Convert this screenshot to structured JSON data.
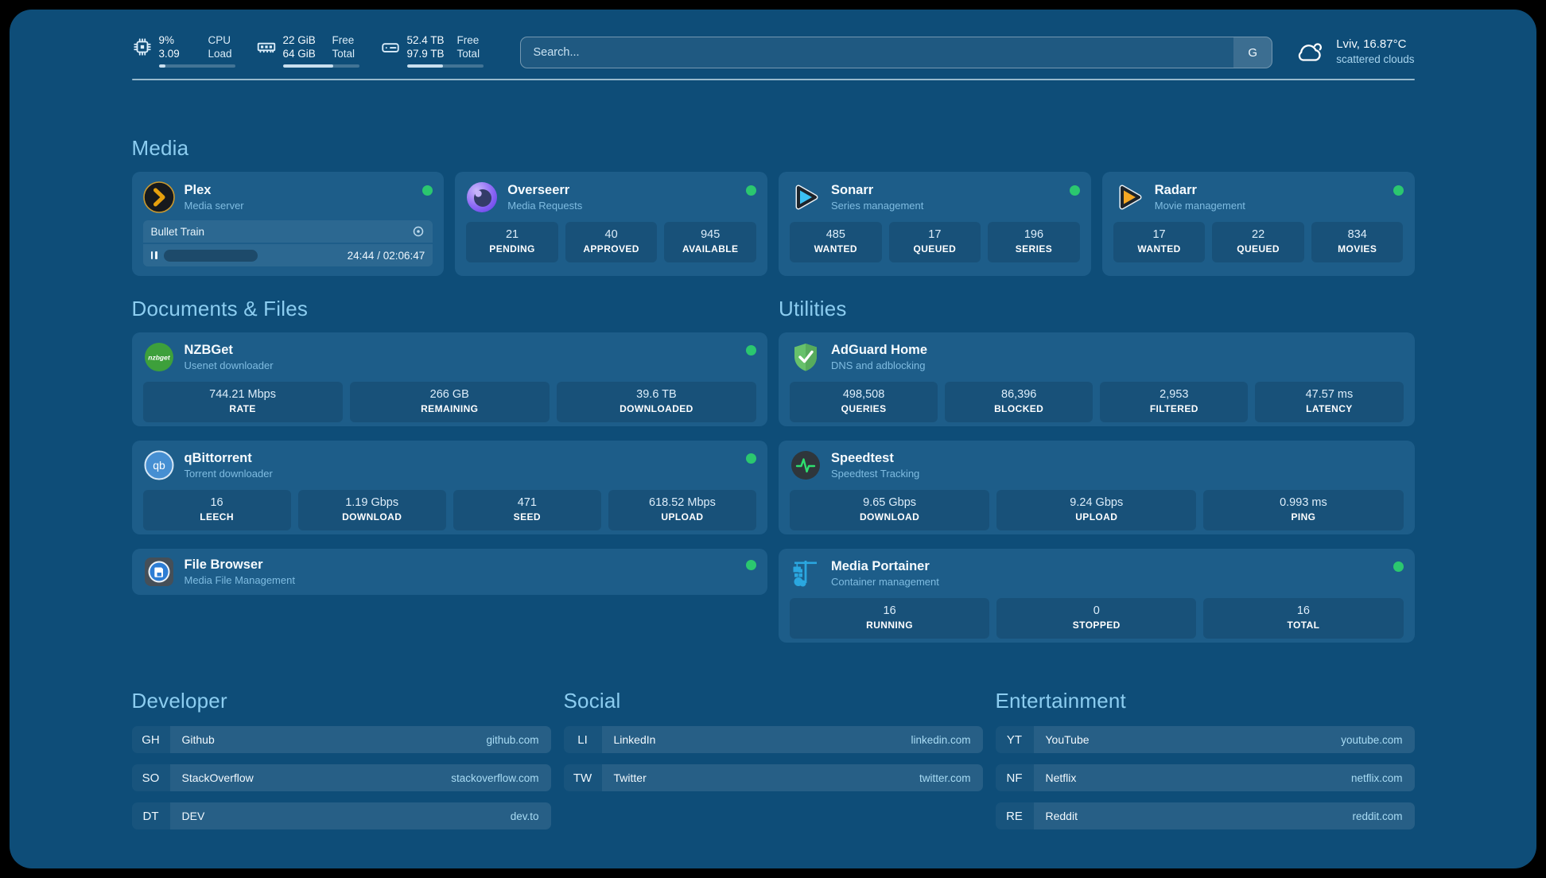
{
  "header": {
    "resources": [
      {
        "icon": "cpu",
        "values": [
          "9%",
          "3.09"
        ],
        "labels": [
          "CPU",
          "Load"
        ],
        "progress_percent": 9
      },
      {
        "icon": "memory",
        "values": [
          "22 GiB",
          "64 GiB"
        ],
        "labels": [
          "Free",
          "Total"
        ],
        "progress_percent": 66
      },
      {
        "icon": "disk",
        "values": [
          "52.4 TB",
          "97.9 TB"
        ],
        "labels": [
          "Free",
          "Total"
        ],
        "progress_percent": 47
      }
    ],
    "search": {
      "placeholder": "Search...",
      "button_label": "G"
    },
    "weather": {
      "location": "Lviv, 16.87°C",
      "condition": "scattered clouds"
    }
  },
  "media": {
    "title": "Media",
    "plex": {
      "name": "Plex",
      "description": "Media server",
      "online": true,
      "now_playing": {
        "title": "Bullet Train",
        "time": "24:44 / 02:06:47"
      }
    },
    "overseerr": {
      "name": "Overseerr",
      "description": "Media Requests",
      "online": true,
      "stats": [
        {
          "value": "21",
          "label": "PENDING"
        },
        {
          "value": "40",
          "label": "APPROVED"
        },
        {
          "value": "945",
          "label": "AVAILABLE"
        }
      ]
    },
    "sonarr": {
      "name": "Sonarr",
      "description": "Series management",
      "online": true,
      "stats": [
        {
          "value": "485",
          "label": "WANTED"
        },
        {
          "value": "17",
          "label": "QUEUED"
        },
        {
          "value": "196",
          "label": "SERIES"
        }
      ]
    },
    "radarr": {
      "name": "Radarr",
      "description": "Movie management",
      "online": true,
      "stats": [
        {
          "value": "17",
          "label": "WANTED"
        },
        {
          "value": "22",
          "label": "QUEUED"
        },
        {
          "value": "834",
          "label": "MOVIES"
        }
      ]
    }
  },
  "documents": {
    "title": "Documents & Files",
    "nzbget": {
      "name": "NZBGet",
      "description": "Usenet downloader",
      "online": true,
      "stats": [
        {
          "value": "744.21 Mbps",
          "label": "RATE"
        },
        {
          "value": "266 GB",
          "label": "REMAINING"
        },
        {
          "value": "39.6 TB",
          "label": "DOWNLOADED"
        }
      ]
    },
    "qbittorrent": {
      "name": "qBittorrent",
      "description": "Torrent downloader",
      "online": true,
      "stats": [
        {
          "value": "16",
          "label": "LEECH"
        },
        {
          "value": "1.19 Gbps",
          "label": "DOWNLOAD"
        },
        {
          "value": "471",
          "label": "SEED"
        },
        {
          "value": "618.52 Mbps",
          "label": "UPLOAD"
        }
      ]
    },
    "filebrowser": {
      "name": "File Browser",
      "description": "Media File Management",
      "online": true
    }
  },
  "utilities": {
    "title": "Utilities",
    "adguard": {
      "name": "AdGuard Home",
      "description": "DNS and adblocking",
      "online": false,
      "stats": [
        {
          "value": "498,508",
          "label": "QUERIES"
        },
        {
          "value": "86,396",
          "label": "BLOCKED"
        },
        {
          "value": "2,953",
          "label": "FILTERED"
        },
        {
          "value": "47.57 ms",
          "label": "LATENCY"
        }
      ]
    },
    "speedtest": {
      "name": "Speedtest",
      "description": "Speedtest Tracking",
      "online": false,
      "stats": [
        {
          "value": "9.65 Gbps",
          "label": "DOWNLOAD"
        },
        {
          "value": "9.24 Gbps",
          "label": "UPLOAD"
        },
        {
          "value": "0.993 ms",
          "label": "PING"
        }
      ]
    },
    "portainer": {
      "name": "Media Portainer",
      "description": "Container management",
      "online": true,
      "stats": [
        {
          "value": "16",
          "label": "RUNNING"
        },
        {
          "value": "0",
          "label": "STOPPED"
        },
        {
          "value": "16",
          "label": "TOTAL"
        }
      ]
    }
  },
  "bookmarks": {
    "groups": [
      {
        "title": "Developer",
        "items": [
          {
            "abbr": "GH",
            "name": "Github",
            "domain": "github.com"
          },
          {
            "abbr": "SO",
            "name": "StackOverflow",
            "domain": "stackoverflow.com"
          },
          {
            "abbr": "DT",
            "name": "DEV",
            "domain": "dev.to"
          }
        ]
      },
      {
        "title": "Social",
        "items": [
          {
            "abbr": "LI",
            "name": "LinkedIn",
            "domain": "linkedin.com"
          },
          {
            "abbr": "TW",
            "name": "Twitter",
            "domain": "twitter.com"
          }
        ]
      },
      {
        "title": "Entertainment",
        "items": [
          {
            "abbr": "YT",
            "name": "YouTube",
            "domain": "youtube.com"
          },
          {
            "abbr": "NF",
            "name": "Netflix",
            "domain": "netflix.com"
          },
          {
            "abbr": "RE",
            "name": "Reddit",
            "domain": "reddit.com"
          }
        ]
      }
    ]
  },
  "colors": {
    "status_online": "#2bc76f",
    "page_background": "#0e4d78",
    "section_title": "#8ccdf0"
  }
}
